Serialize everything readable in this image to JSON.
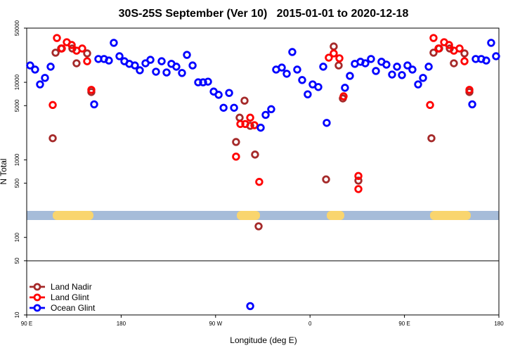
{
  "chart_data": {
    "type": "scatter",
    "title": "30S-25S September (Ver 10)   2015-01-01 to 2020-12-18",
    "x_label": "Longitude (deg E)",
    "y_label": "N Total",
    "log_y": true,
    "legend": "bottom-left",
    "xlim": [
      90,
      540
    ],
    "xticks": [
      {
        "value": 90,
        "label": "90 E"
      },
      180,
      {
        "value": 270,
        "label": "90 W"
      },
      {
        "value": 360,
        "label": "0"
      },
      {
        "value": 450,
        "label": "90 E"
      },
      {
        "value": 540,
        "label": "180"
      }
    ],
    "ylim": [
      10,
      50000
    ],
    "yticks": [
      10,
      50,
      100,
      500,
      1000,
      5000,
      10000,
      50000
    ],
    "series": [
      {
        "name": "Land Nadir",
        "color": "#a52a2a",
        "x": [
          114.8,
          117.5,
          122.8,
          133.5,
          137.5,
          147.6,
          151.6,
          289.5,
          292.9,
          297.6,
          303.0,
          307.6,
          311.0,
          375.3,
          382.6,
          387.3,
          391.3,
          406.1,
          475.7,
          477.7,
          483.1,
          493.2,
          497.1,
          507.2,
          511.9
        ],
        "values": [
          1900,
          24100,
          27300,
          27300,
          17600,
          23600,
          7500,
          1700,
          3500,
          5800,
          2750,
          1170,
          139,
          560,
          29000,
          16500,
          6200,
          540,
          1900,
          24100,
          27300,
          27300,
          17600,
          23600,
          7500
        ]
      },
      {
        "name": "Land Glint",
        "color": "#ff0000",
        "x": [
          114.8,
          118.8,
          123.5,
          128.2,
          132.9,
          137.5,
          142.9,
          147.6,
          151.6,
          289.5,
          293.6,
          298.3,
          303.0,
          307.0,
          311.6,
          377.9,
          382.6,
          388.0,
          392.0,
          406.1,
          406.1,
          474.4,
          477.7,
          482.4,
          487.8,
          492.5,
          497.1,
          502.5,
          507.2,
          511.9
        ],
        "values": [
          5100,
          37300,
          27300,
          32900,
          30300,
          25600,
          27300,
          18700,
          8000,
          1100,
          2900,
          2900,
          3500,
          2800,
          520,
          20800,
          23600,
          20400,
          6600,
          620,
          420,
          5100,
          37300,
          27300,
          32900,
          30300,
          25600,
          27300,
          18700,
          8000
        ]
      },
      {
        "name": "Ocean Glint",
        "color": "#0000ff",
        "x": [
          93.3,
          98.0,
          102.7,
          107.4,
          112.8,
          154.3,
          158.3,
          163.7,
          168.3,
          173.0,
          178.4,
          183.1,
          187.8,
          193.1,
          197.8,
          203.2,
          207.9,
          213.2,
          218.6,
          223.3,
          227.9,
          232.6,
          238.0,
          242.7,
          248.1,
          253.4,
          258.1,
          262.8,
          268.2,
          272.9,
          277.6,
          282.9,
          287.6,
          303.0,
          313.0,
          317.7,
          323.0,
          327.7,
          333.1,
          337.8,
          343.1,
          347.8,
          352.5,
          357.8,
          362.5,
          367.9,
          372.6,
          375.9,
          393.3,
          398.0,
          402.7,
          408.1,
          412.7,
          418.1,
          422.8,
          428.1,
          432.8,
          438.2,
          442.9,
          447.6,
          452.9,
          457.6,
          463.0,
          467.7,
          473.1,
          514.6,
          517.9,
          523.2,
          527.9,
          532.6,
          537.3
        ],
        "values": [
          16500,
          14600,
          9400,
          11400,
          15900,
          5200,
          20000,
          20000,
          19100,
          32300,
          21700,
          18700,
          17300,
          16500,
          14300,
          17600,
          19500,
          13700,
          18700,
          13400,
          17300,
          15900,
          13200,
          22600,
          16500,
          10000,
          10000,
          10200,
          7600,
          6900,
          4700,
          7300,
          4700,
          13,
          2600,
          3800,
          4500,
          14600,
          15500,
          12900,
          24600,
          14600,
          10700,
          7000,
          9400,
          8700,
          15900,
          3000,
          8500,
          12100,
          17300,
          18400,
          17600,
          20000,
          14000,
          18400,
          16900,
          12600,
          15900,
          12400,
          16500,
          14600,
          9400,
          11400,
          15900,
          5200,
          20000,
          20000,
          19100,
          32300,
          21700
        ]
      }
    ]
  }
}
